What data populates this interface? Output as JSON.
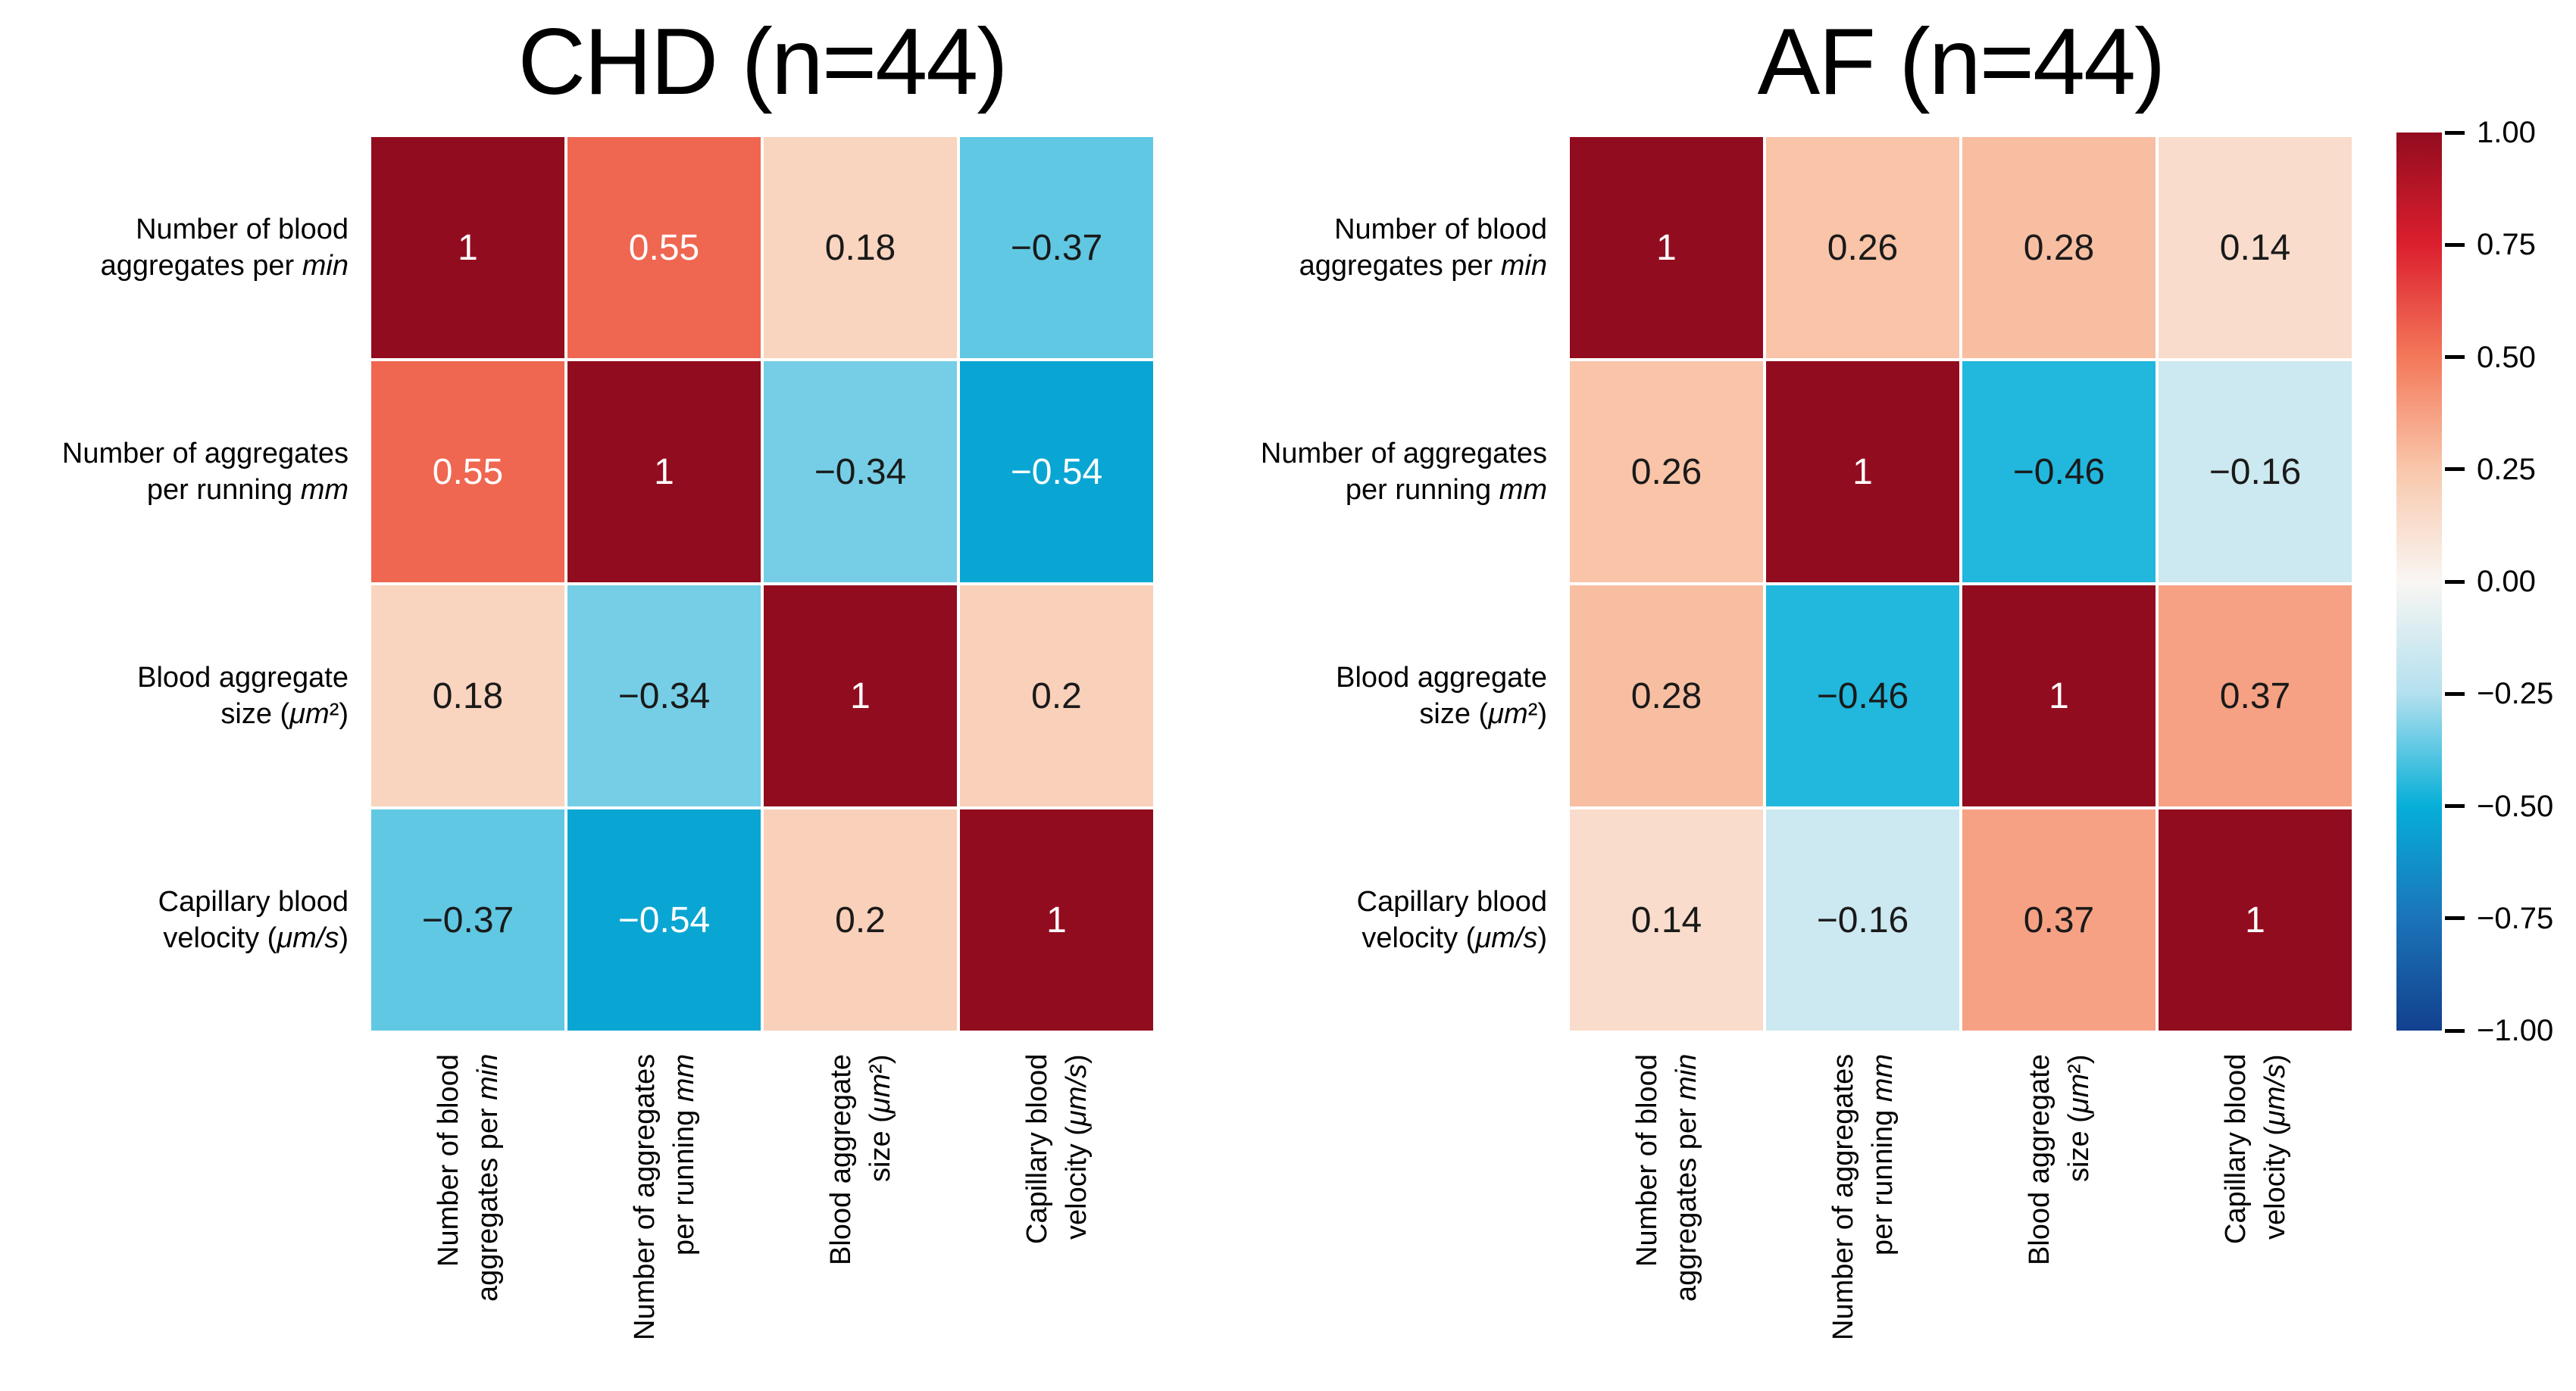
{
  "figure_background": "#ffffff",
  "chart_data": [
    {
      "type": "heatmap",
      "title": "CHD (n=44)",
      "variables": [
        "Number of blood aggregates per min",
        "Number of aggregates per running mm",
        "Blood aggregate size (μm²)",
        "Capillary blood velocity (μm/s)"
      ],
      "label_lines": [
        [
          "Number of blood",
          "aggregates per _min_"
        ],
        [
          "Number of aggregates",
          "per running _mm_"
        ],
        [
          "Blood aggregate",
          "size (_μm_²)"
        ],
        [
          "Capillary blood",
          "velocity (_μm/s_)"
        ]
      ],
      "matrix": [
        [
          1,
          0.55,
          0.18,
          -0.37
        ],
        [
          0.55,
          1,
          -0.34,
          -0.54
        ],
        [
          0.18,
          -0.34,
          1,
          0.2
        ],
        [
          -0.37,
          -0.54,
          0.2,
          1
        ]
      ],
      "vmin": -1,
      "vmax": 1,
      "grid_line_color": "#ffffff",
      "annot_color_dark": "#1a1a1a",
      "annot_color_light": "#ffffff"
    },
    {
      "type": "heatmap",
      "title": "AF (n=44)",
      "variables": [
        "Number of blood aggregates per min",
        "Number of aggregates per running mm",
        "Blood aggregate size (μm²)",
        "Capillary blood velocity (μm/s)"
      ],
      "label_lines": [
        [
          "Number of blood",
          "aggregates per _min_"
        ],
        [
          "Number of aggregates",
          "per running _mm_"
        ],
        [
          "Blood aggregate",
          "size (_μm_²)"
        ],
        [
          "Capillary blood",
          "velocity (_μm/s_)"
        ]
      ],
      "matrix": [
        [
          1,
          0.26,
          0.28,
          0.14
        ],
        [
          0.26,
          1,
          -0.46,
          -0.16
        ],
        [
          0.28,
          -0.46,
          1,
          0.37
        ],
        [
          0.14,
          -0.16,
          0.37,
          1
        ]
      ],
      "vmin": -1,
      "vmax": 1,
      "grid_line_color": "#ffffff",
      "annot_color_dark": "#1a1a1a",
      "annot_color_light": "#ffffff"
    }
  ],
  "colorbar": {
    "tick_labels": [
      "1.00",
      "0.75",
      "0.50",
      "0.25",
      "0.00",
      "−0.25",
      "−0.50",
      "−0.75",
      "−1.00"
    ],
    "tick_values": [
      1.0,
      0.75,
      0.5,
      0.25,
      0.0,
      -0.25,
      -0.5,
      -0.75,
      -1.0
    ],
    "colormap_stops": [
      {
        "v": -1.0,
        "c": "#12408e"
      },
      {
        "v": -0.75,
        "c": "#1b74b8"
      },
      {
        "v": -0.5,
        "c": "#06afd8"
      },
      {
        "v": -0.25,
        "c": "#b3e0ee"
      },
      {
        "v": 0.0,
        "c": "#f9f6f3"
      },
      {
        "v": 0.25,
        "c": "#f9c7ab"
      },
      {
        "v": 0.5,
        "c": "#f4785a"
      },
      {
        "v": 0.75,
        "c": "#dc1f2e"
      },
      {
        "v": 1.0,
        "c": "#920c1f"
      }
    ]
  }
}
